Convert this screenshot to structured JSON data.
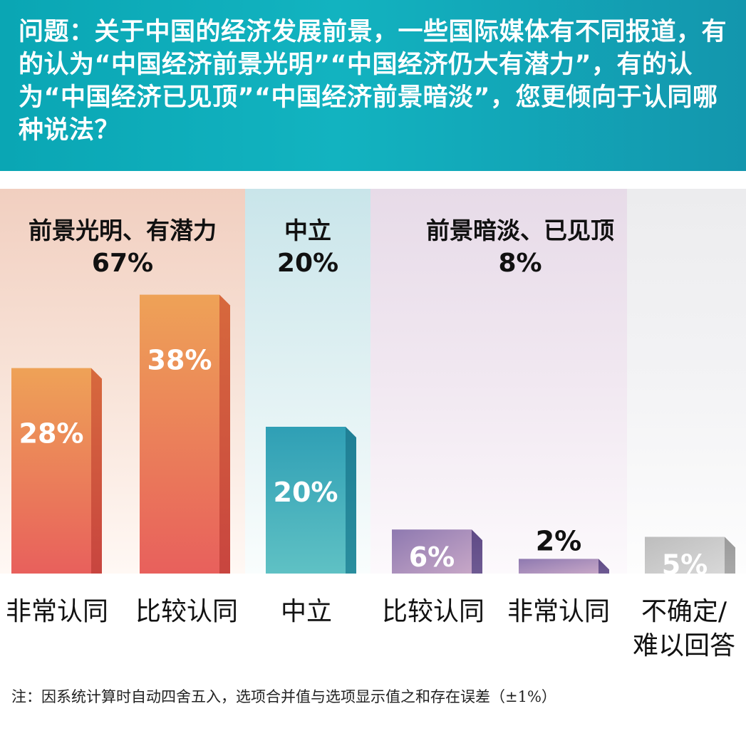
{
  "question": "问题：关于中国的经济发展前景，一些国际媒体有不同报道，有的认为“中国经济前景光明”“中国经济仍大有潜力”，有的认为“中国经济已见顶”“中国经济前景暗淡”，您更倾向于认同哪种说法？",
  "groups": {
    "positive": {
      "label": "前景光明、有潜力",
      "value": "67%"
    },
    "neutral": {
      "label": "中立",
      "value": "20%"
    },
    "negative": {
      "label": "前景暗淡、已见顶",
      "value": "8%"
    }
  },
  "colors": {
    "header": "#12b3c0",
    "positive_top": "#eea257",
    "positive_bottom": "#e8605c",
    "neutral_top": "#2f9fb5",
    "neutral_bottom": "#5fc1c4",
    "negative_top": "#8e79b0",
    "negative_bottom": "#c7a7c7",
    "unsure": "#c9c9c9"
  },
  "chart_data": {
    "type": "bar",
    "categories": [
      "非常认同",
      "比较认同",
      "中立",
      "比较认同",
      "非常认同",
      "不确定/难以回答"
    ],
    "category_lines": [
      [
        "非常认同"
      ],
      [
        "比较认同"
      ],
      [
        "中立"
      ],
      [
        "比较认同"
      ],
      [
        "非常认同"
      ],
      [
        "不确定/",
        "难以回答"
      ]
    ],
    "values": [
      28,
      38,
      20,
      6,
      2,
      5
    ],
    "value_labels": [
      "28%",
      "38%",
      "20%",
      "6%",
      "2%",
      "5%"
    ],
    "groups": [
      "positive",
      "positive",
      "neutral",
      "negative",
      "negative",
      "unsure"
    ],
    "ylim": [
      0,
      40
    ],
    "grid": false
  },
  "footnote": "注：因系统计算时自动四舍五入，选项合并值与选项显示值之和存在误差（±1%）"
}
